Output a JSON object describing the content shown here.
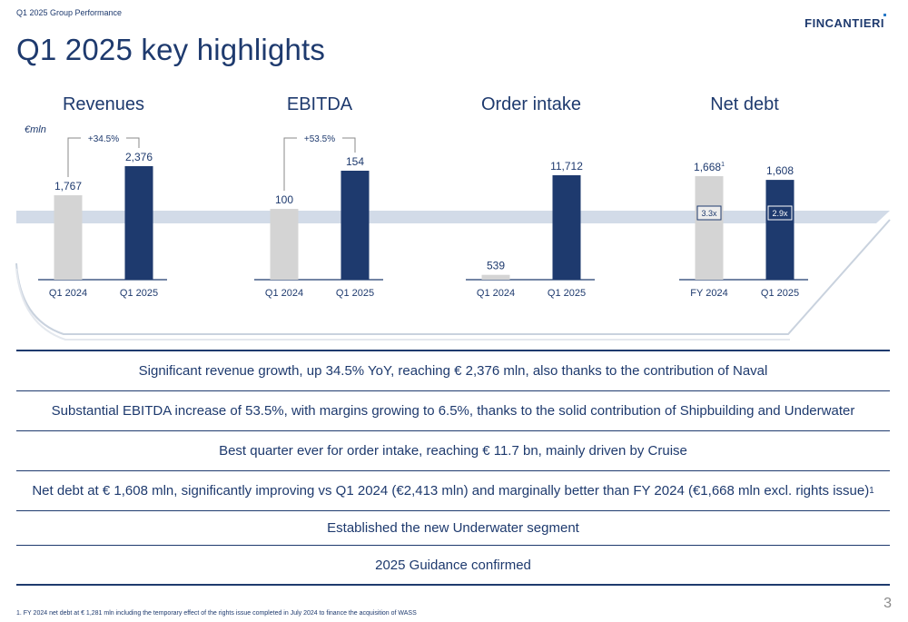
{
  "header": {
    "breadcrumb": "Q1 2025 Group Performance",
    "title": "Q1 2025 key highlights",
    "logo_text": "FINCANTIERI"
  },
  "chart_data": {
    "type": "bar",
    "unit_label": "€mln",
    "panels": [
      {
        "title": "Revenues",
        "categories": [
          "Q1 2024",
          "Q1 2025"
        ],
        "values": [
          1767,
          2376
        ],
        "value_labels": [
          "1,767",
          "2,376"
        ],
        "growth_label": "+34.5%"
      },
      {
        "title": "EBITDA",
        "categories": [
          "Q1 2024",
          "Q1 2025"
        ],
        "values": [
          100,
          154
        ],
        "value_labels": [
          "100",
          "154"
        ],
        "growth_label": "+53.5%"
      },
      {
        "title": "Order intake",
        "categories": [
          "Q1 2024",
          "Q1 2025"
        ],
        "values": [
          539,
          11712
        ],
        "value_labels": [
          "539",
          "11,712"
        ]
      },
      {
        "title": "Net debt",
        "categories": [
          "FY 2024",
          "Q1 2025"
        ],
        "values": [
          1668,
          1608
        ],
        "value_labels": [
          "1,668",
          "1,608"
        ],
        "superscripts": [
          "1",
          ""
        ],
        "ratios": [
          "3.3x",
          "2.9x"
        ]
      }
    ],
    "colors": {
      "prior": "#d4d4d4",
      "current": "#1e3a6e",
      "band": "#d2dbe8"
    }
  },
  "highlights": [
    "Significant revenue growth, up 34.5% YoY, reaching € 2,376 mln, also thanks to the contribution of Naval",
    "Substantial EBITDA increase of 53.5%, with margins growing to 6.5%, thanks to the solid contribution of Shipbuilding and Underwater",
    "Best quarter ever for order intake, reaching € 11.7 bn, mainly driven by Cruise",
    "Net debt at € 1,608 mln, significantly improving vs Q1 2024 (€2,413 mln) and marginally better than FY 2024 (€1,668 mln excl. rights issue)",
    "Established the new Underwater segment",
    "2025 Guidance confirmed"
  ],
  "highlight_superscript": "1",
  "footnote": "1.  FY 2024 net debt at € 1,281 mln including the temporary effect of the rights issue completed in July 2024 to finance the acquisition of WASS",
  "page_number": "3"
}
